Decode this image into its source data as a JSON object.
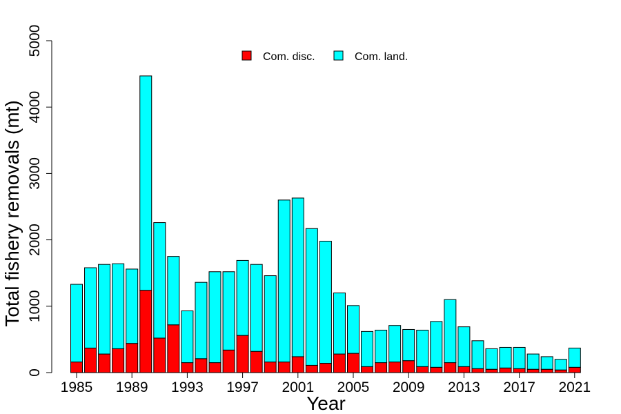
{
  "chart_data": {
    "type": "bar",
    "stacked": true,
    "title": "",
    "xlabel": "Year",
    "ylabel": "Total fishery removals (mt)",
    "ylim": [
      0,
      5000
    ],
    "yticks": [
      0,
      1000,
      2000,
      3000,
      4000,
      5000
    ],
    "xtick_labels": [
      "1985",
      "1989",
      "1993",
      "1997",
      "2001",
      "2005",
      "2009",
      "2013",
      "2017",
      "2021"
    ],
    "grid": false,
    "legend_position": "top-center",
    "categories": [
      "1985",
      "1986",
      "1987",
      "1988",
      "1989",
      "1990",
      "1991",
      "1992",
      "1993",
      "1994",
      "1995",
      "1996",
      "1997",
      "1998",
      "1999",
      "2000",
      "2001",
      "2002",
      "2003",
      "2004",
      "2005",
      "2006",
      "2007",
      "2008",
      "2009",
      "2010",
      "2011",
      "2012",
      "2013",
      "2014",
      "2015",
      "2016",
      "2017",
      "2018",
      "2019",
      "2020",
      "2021"
    ],
    "series": [
      {
        "name": "Com. disc.",
        "color": "#ff0000",
        "values": [
          160,
          370,
          280,
          360,
          440,
          1240,
          520,
          720,
          150,
          210,
          150,
          340,
          560,
          320,
          160,
          160,
          240,
          110,
          140,
          280,
          290,
          90,
          150,
          160,
          180,
          90,
          80,
          150,
          90,
          60,
          50,
          70,
          60,
          50,
          50,
          40,
          80
        ]
      },
      {
        "name": "Com. land.",
        "color": "#00ffff",
        "values": [
          1170,
          1210,
          1350,
          1280,
          1120,
          3230,
          1740,
          1030,
          780,
          1150,
          1370,
          1180,
          1130,
          1310,
          1300,
          2440,
          2390,
          2060,
          1840,
          920,
          720,
          530,
          490,
          550,
          470,
          550,
          690,
          950,
          600,
          420,
          310,
          310,
          320,
          230,
          190,
          160,
          290
        ]
      }
    ]
  }
}
